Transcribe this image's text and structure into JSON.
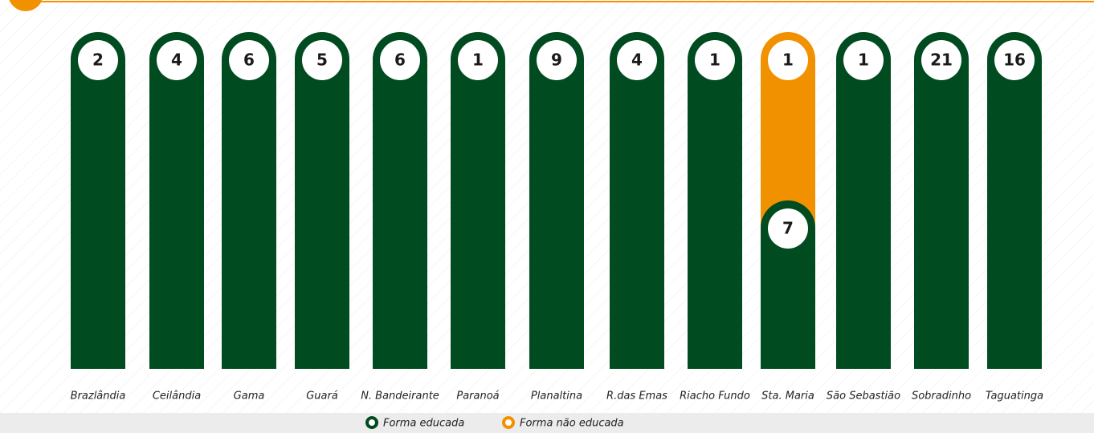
{
  "chart_data": {
    "type": "bar",
    "categories": [
      "Brazlândia",
      "Ceilândia",
      "Gama",
      "Guará",
      "N. Bandeirante",
      "Paranoá",
      "Planaltina",
      "R.das Emas",
      "Riacho Fundo",
      "Sta. Maria",
      "São Sebastião",
      "Sobradinho",
      "Taguatinga"
    ],
    "series": [
      {
        "name": "Forma educada",
        "color": "#004b1f",
        "values": [
          2,
          4,
          6,
          5,
          6,
          1,
          9,
          4,
          1,
          7,
          1,
          21,
          16
        ]
      },
      {
        "name": "Forma não educada",
        "color": "#f29100",
        "values": [
          null,
          null,
          null,
          null,
          null,
          null,
          null,
          null,
          null,
          1,
          null,
          null,
          null
        ]
      }
    ]
  }
}
